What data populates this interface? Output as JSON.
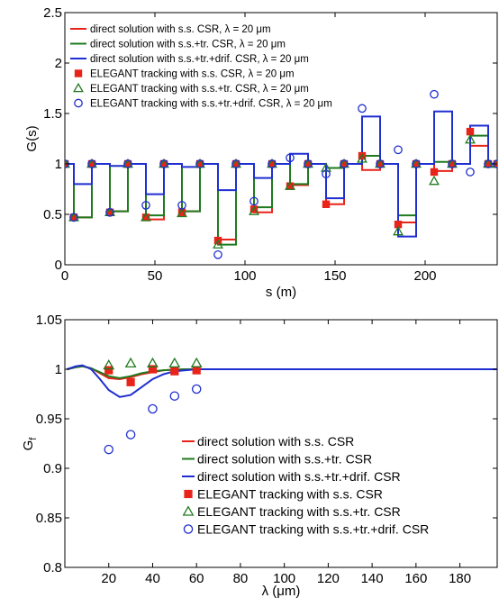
{
  "chart_data": [
    {
      "type": "line",
      "xlabel": "s (m)",
      "ylabel": "G(s)",
      "xlim": [
        0,
        240
      ],
      "ylim": [
        0,
        2.5
      ],
      "xticks": [
        "0",
        "50",
        "100",
        "150",
        "200"
      ],
      "yticks": [
        "0",
        "0.5",
        "1",
        "1.5",
        "2",
        "2.5"
      ],
      "legend_position": "top-left",
      "legend": [
        "direct solution with s.s. CSR, λ = 20 μm",
        "direct solution with s.s.+tr. CSR, λ = 20 μm",
        "direct solution with s.s.+tr.+drif. CSR, λ = 20 μm",
        "ELEGANT tracking with s.s. CSR, λ = 20 μm",
        "ELEGANT tracking with s.s.+tr. CSR, λ = 20 μm",
        "ELEGANT tracking with s.s.+tr.+drif. CSR, λ = 20 μm"
      ],
      "series": [
        {
          "color": "#e8231a",
          "kind": "step",
          "x": [
            0,
            5,
            15,
            25,
            35,
            45,
            55,
            65,
            75,
            85,
            95,
            105,
            115,
            125,
            135,
            145,
            155,
            165,
            175,
            185,
            195,
            205,
            215,
            225,
            235,
            240
          ],
          "values": [
            1,
            0.47,
            1,
            0.53,
            1,
            0.45,
            1,
            0.53,
            1,
            0.25,
            1,
            0.52,
            1,
            0.79,
            1,
            0.6,
            1,
            0.94,
            1,
            0.42,
            1,
            0.93,
            1,
            1.18,
            1,
            1
          ]
        },
        {
          "color": "#1f7a1f",
          "kind": "step",
          "x": [
            0,
            5,
            15,
            25,
            35,
            45,
            55,
            65,
            75,
            85,
            95,
            105,
            115,
            125,
            135,
            145,
            155,
            165,
            175,
            185,
            195,
            205,
            215,
            225,
            235,
            240
          ],
          "values": [
            1,
            0.47,
            1,
            0.53,
            1,
            0.49,
            1,
            0.53,
            1,
            0.2,
            1,
            0.57,
            1,
            0.8,
            1,
            0.96,
            1,
            1.08,
            1,
            0.49,
            1,
            1.02,
            1,
            1.28,
            1,
            1
          ]
        },
        {
          "color": "#1f2ed1",
          "kind": "step",
          "x": [
            0,
            5,
            15,
            25,
            35,
            45,
            55,
            65,
            75,
            85,
            95,
            105,
            115,
            125,
            135,
            145,
            155,
            165,
            175,
            185,
            195,
            205,
            215,
            225,
            235,
            240
          ],
          "values": [
            1,
            0.8,
            1,
            0.98,
            1,
            0.7,
            1,
            0.97,
            1,
            0.74,
            1,
            0.86,
            1,
            1.1,
            1,
            0.66,
            1,
            1.47,
            1,
            0.28,
            1,
            1.52,
            1,
            1.38,
            1,
            1
          ]
        },
        {
          "color": "#e8231a",
          "kind": "square",
          "x": [
            0,
            5,
            15,
            25,
            35,
            45,
            55,
            65,
            75,
            85,
            95,
            105,
            115,
            125,
            135,
            145,
            155,
            165,
            175,
            185,
            195,
            205,
            215,
            225,
            235,
            240
          ],
          "values": [
            1,
            0.47,
            1,
            0.52,
            1,
            0.47,
            1,
            0.52,
            1,
            0.24,
            1,
            0.55,
            1,
            0.78,
            1,
            0.6,
            1,
            1.08,
            1,
            0.4,
            1,
            0.92,
            1,
            1.32,
            1,
            1
          ]
        },
        {
          "color": "#1f7a1f",
          "kind": "triangle",
          "x": [
            0,
            5,
            15,
            25,
            35,
            45,
            55,
            65,
            75,
            85,
            95,
            105,
            115,
            125,
            135,
            145,
            155,
            165,
            175,
            185,
            195,
            205,
            215,
            225,
            235,
            240
          ],
          "values": [
            1,
            0.47,
            1,
            0.52,
            1,
            0.47,
            1,
            0.51,
            1,
            0.2,
            1,
            0.53,
            1,
            0.78,
            1,
            0.96,
            1,
            1.05,
            1,
            0.33,
            1,
            0.83,
            1,
            1.24,
            1,
            1
          ]
        },
        {
          "color": "#1f2ed1",
          "kind": "circle",
          "x": [
            0,
            5,
            15,
            25,
            35,
            45,
            55,
            65,
            75,
            85,
            95,
            105,
            115,
            125,
            135,
            145,
            155,
            165,
            175,
            185,
            195,
            205,
            215,
            225,
            235,
            240
          ],
          "values": [
            1,
            0.47,
            1,
            0.52,
            1,
            0.59,
            1,
            0.59,
            1,
            0.1,
            1,
            0.63,
            1,
            1.06,
            1,
            0.9,
            1,
            1.55,
            1,
            1.14,
            1,
            1.69,
            1,
            0.92,
            1,
            1
          ]
        }
      ]
    },
    {
      "type": "line",
      "xlabel": "λ (μm)",
      "ylabel": "G_f",
      "xlim": [
        0,
        197
      ],
      "ylim": [
        0.8,
        1.05
      ],
      "xticks": [
        "20",
        "40",
        "60",
        "80",
        "100",
        "120",
        "140",
        "160",
        "180"
      ],
      "yticks": [
        "0.8",
        "0.85",
        "0.9",
        "0.95",
        "1",
        "1.05"
      ],
      "legend_position": "bottom-right",
      "legend": [
        "direct solution with s.s. CSR",
        "direct solution with s.s.+tr. CSR",
        "direct solution with s.s.+tr.+drif. CSR",
        "ELEGANT tracking with s.s. CSR",
        "ELEGANT tracking with s.s.+tr. CSR",
        "ELEGANT tracking with s.s.+tr.+drif. CSR"
      ],
      "series": [
        {
          "color": "#e8231a",
          "kind": "line",
          "x": [
            1,
            5,
            8,
            12,
            16,
            20,
            25,
            30,
            35,
            40,
            45,
            50,
            55,
            60,
            70,
            80,
            197
          ],
          "values": [
            1.0,
            1.002,
            1.003,
            1.001,
            0.996,
            0.991,
            0.99,
            0.992,
            0.995,
            0.997,
            0.999,
            0.9995,
            1.0,
            1.0,
            1.0,
            1.0,
            1.0
          ]
        },
        {
          "color": "#1f7a1f",
          "kind": "line",
          "x": [
            1,
            5,
            8,
            12,
            16,
            20,
            25,
            30,
            35,
            40,
            45,
            50,
            55,
            60,
            70,
            80,
            197
          ],
          "values": [
            1.0,
            1.002,
            1.003,
            1.001,
            0.997,
            0.993,
            0.991,
            0.993,
            0.996,
            0.998,
            0.999,
            0.9995,
            1.0,
            1.0,
            1.0,
            1.0,
            1.0
          ]
        },
        {
          "color": "#1f2ed1",
          "kind": "line",
          "x": [
            1,
            5,
            8,
            12,
            16,
            20,
            25,
            30,
            35,
            40,
            45,
            50,
            55,
            60,
            70,
            80,
            197
          ],
          "values": [
            1.0,
            1.003,
            1.004,
            1.0,
            0.99,
            0.979,
            0.972,
            0.974,
            0.982,
            0.99,
            0.995,
            0.998,
            0.999,
            1.0,
            1.0,
            1.0,
            1.0
          ]
        },
        {
          "color": "#e8231a",
          "kind": "square",
          "x": [
            20,
            30,
            40,
            50,
            60
          ],
          "values": [
            0.999,
            0.987,
            1.0,
            0.998,
            0.999
          ]
        },
        {
          "color": "#1f7a1f",
          "kind": "triangle",
          "x": [
            20,
            30,
            40,
            50,
            60
          ],
          "values": [
            1.004,
            1.006,
            1.006,
            1.006,
            1.006
          ]
        },
        {
          "color": "#1f2ed1",
          "kind": "circle",
          "x": [
            20,
            30,
            40,
            50,
            60
          ],
          "values": [
            0.919,
            0.934,
            0.96,
            0.973,
            0.98
          ]
        }
      ]
    }
  ]
}
